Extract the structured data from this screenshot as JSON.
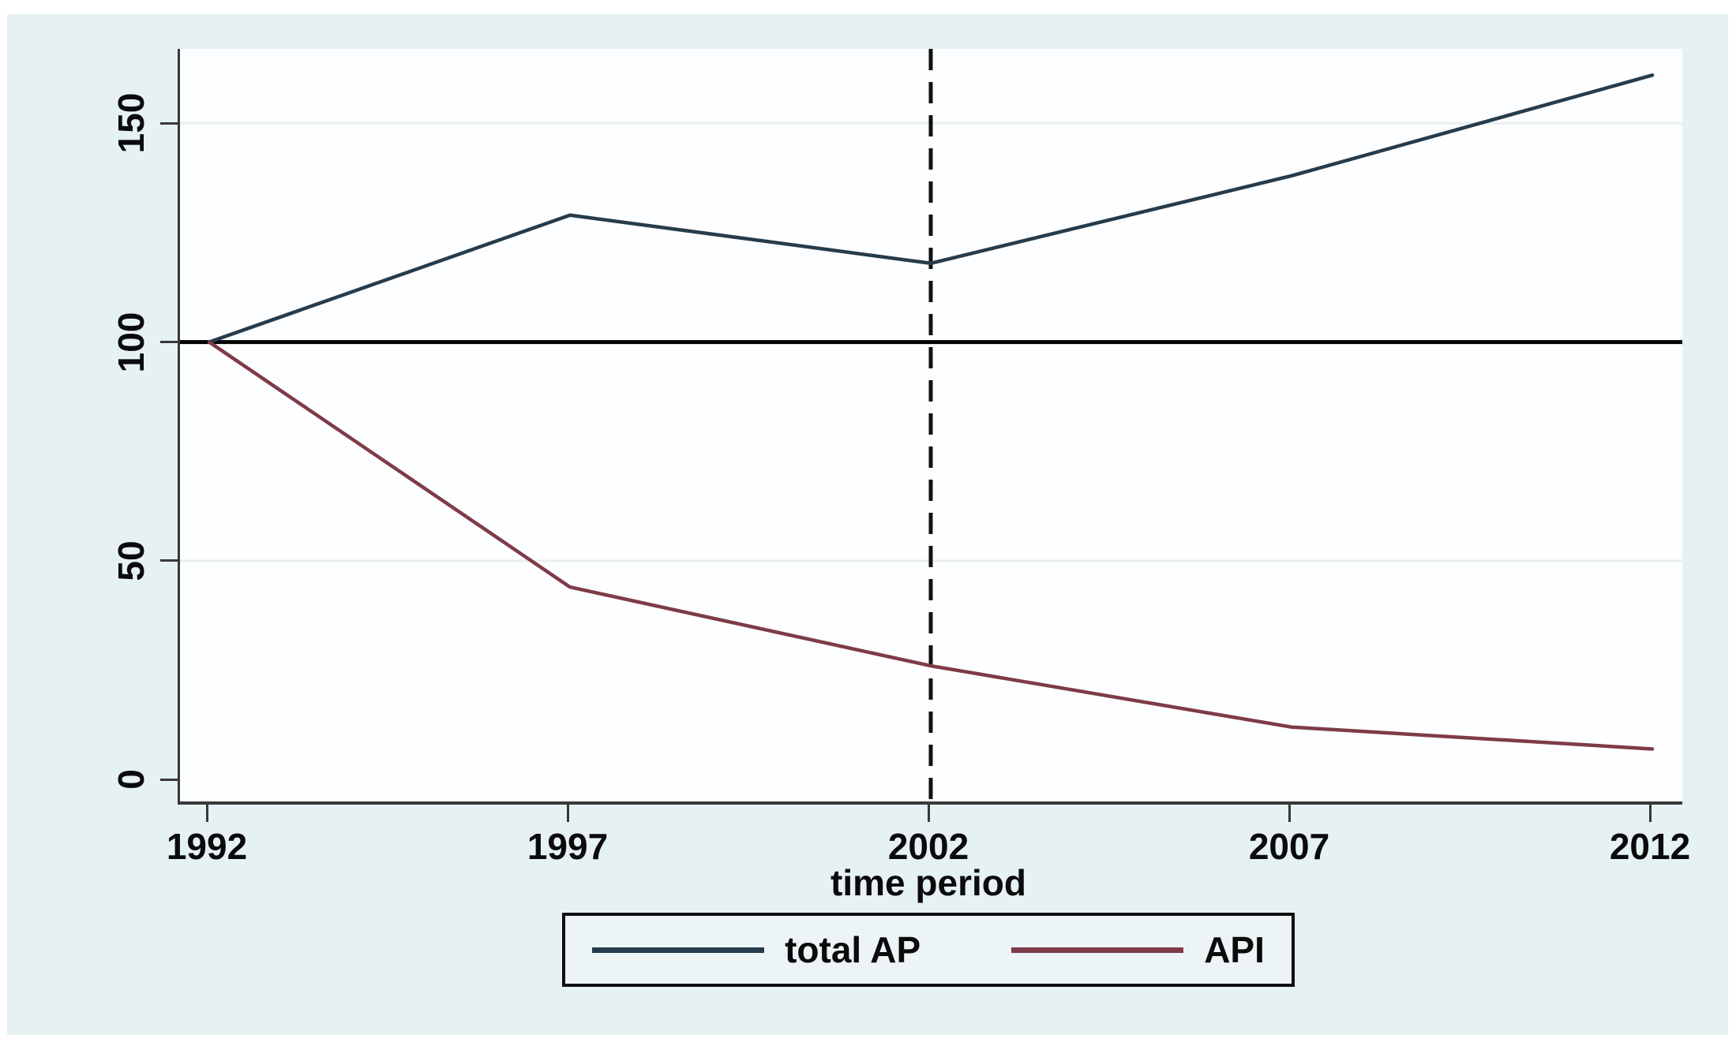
{
  "figure": {
    "page_background": "#ffffff",
    "canvas_background": "#e6f1f4",
    "plot_background": "#fdfeff",
    "axis_color": "#383838",
    "gridline_color": "#e8eff1"
  },
  "chart_data": {
    "type": "line",
    "title": "",
    "xlabel": "time period",
    "ylabel": "",
    "x": [
      1992,
      1997,
      2002,
      2007,
      2012
    ],
    "x_tick_labels": [
      "1992",
      "1997",
      "2002",
      "2007",
      "2012"
    ],
    "y_ticks": [
      0,
      50,
      100,
      150
    ],
    "y_tick_labels": [
      "0",
      "50",
      "100",
      "150"
    ],
    "xlim": [
      1992,
      2012
    ],
    "ylim": [
      -5,
      167
    ],
    "grid": "faint horizontal gridlines at y ticks",
    "legend_position": "bottom-center",
    "series": [
      {
        "name": "total AP",
        "color": "#263c4c",
        "values": [
          100,
          129,
          118,
          138,
          161
        ]
      },
      {
        "name": "API",
        "color": "#7e3b48",
        "values": [
          100,
          44,
          26,
          12,
          7
        ]
      }
    ],
    "reference_lines": [
      {
        "type": "hline",
        "y": 100,
        "style": "solid",
        "color": "#000000",
        "width": 5
      },
      {
        "type": "vline",
        "x": 2002,
        "style": "dashed",
        "color": "#111111",
        "width": 5
      }
    ]
  }
}
